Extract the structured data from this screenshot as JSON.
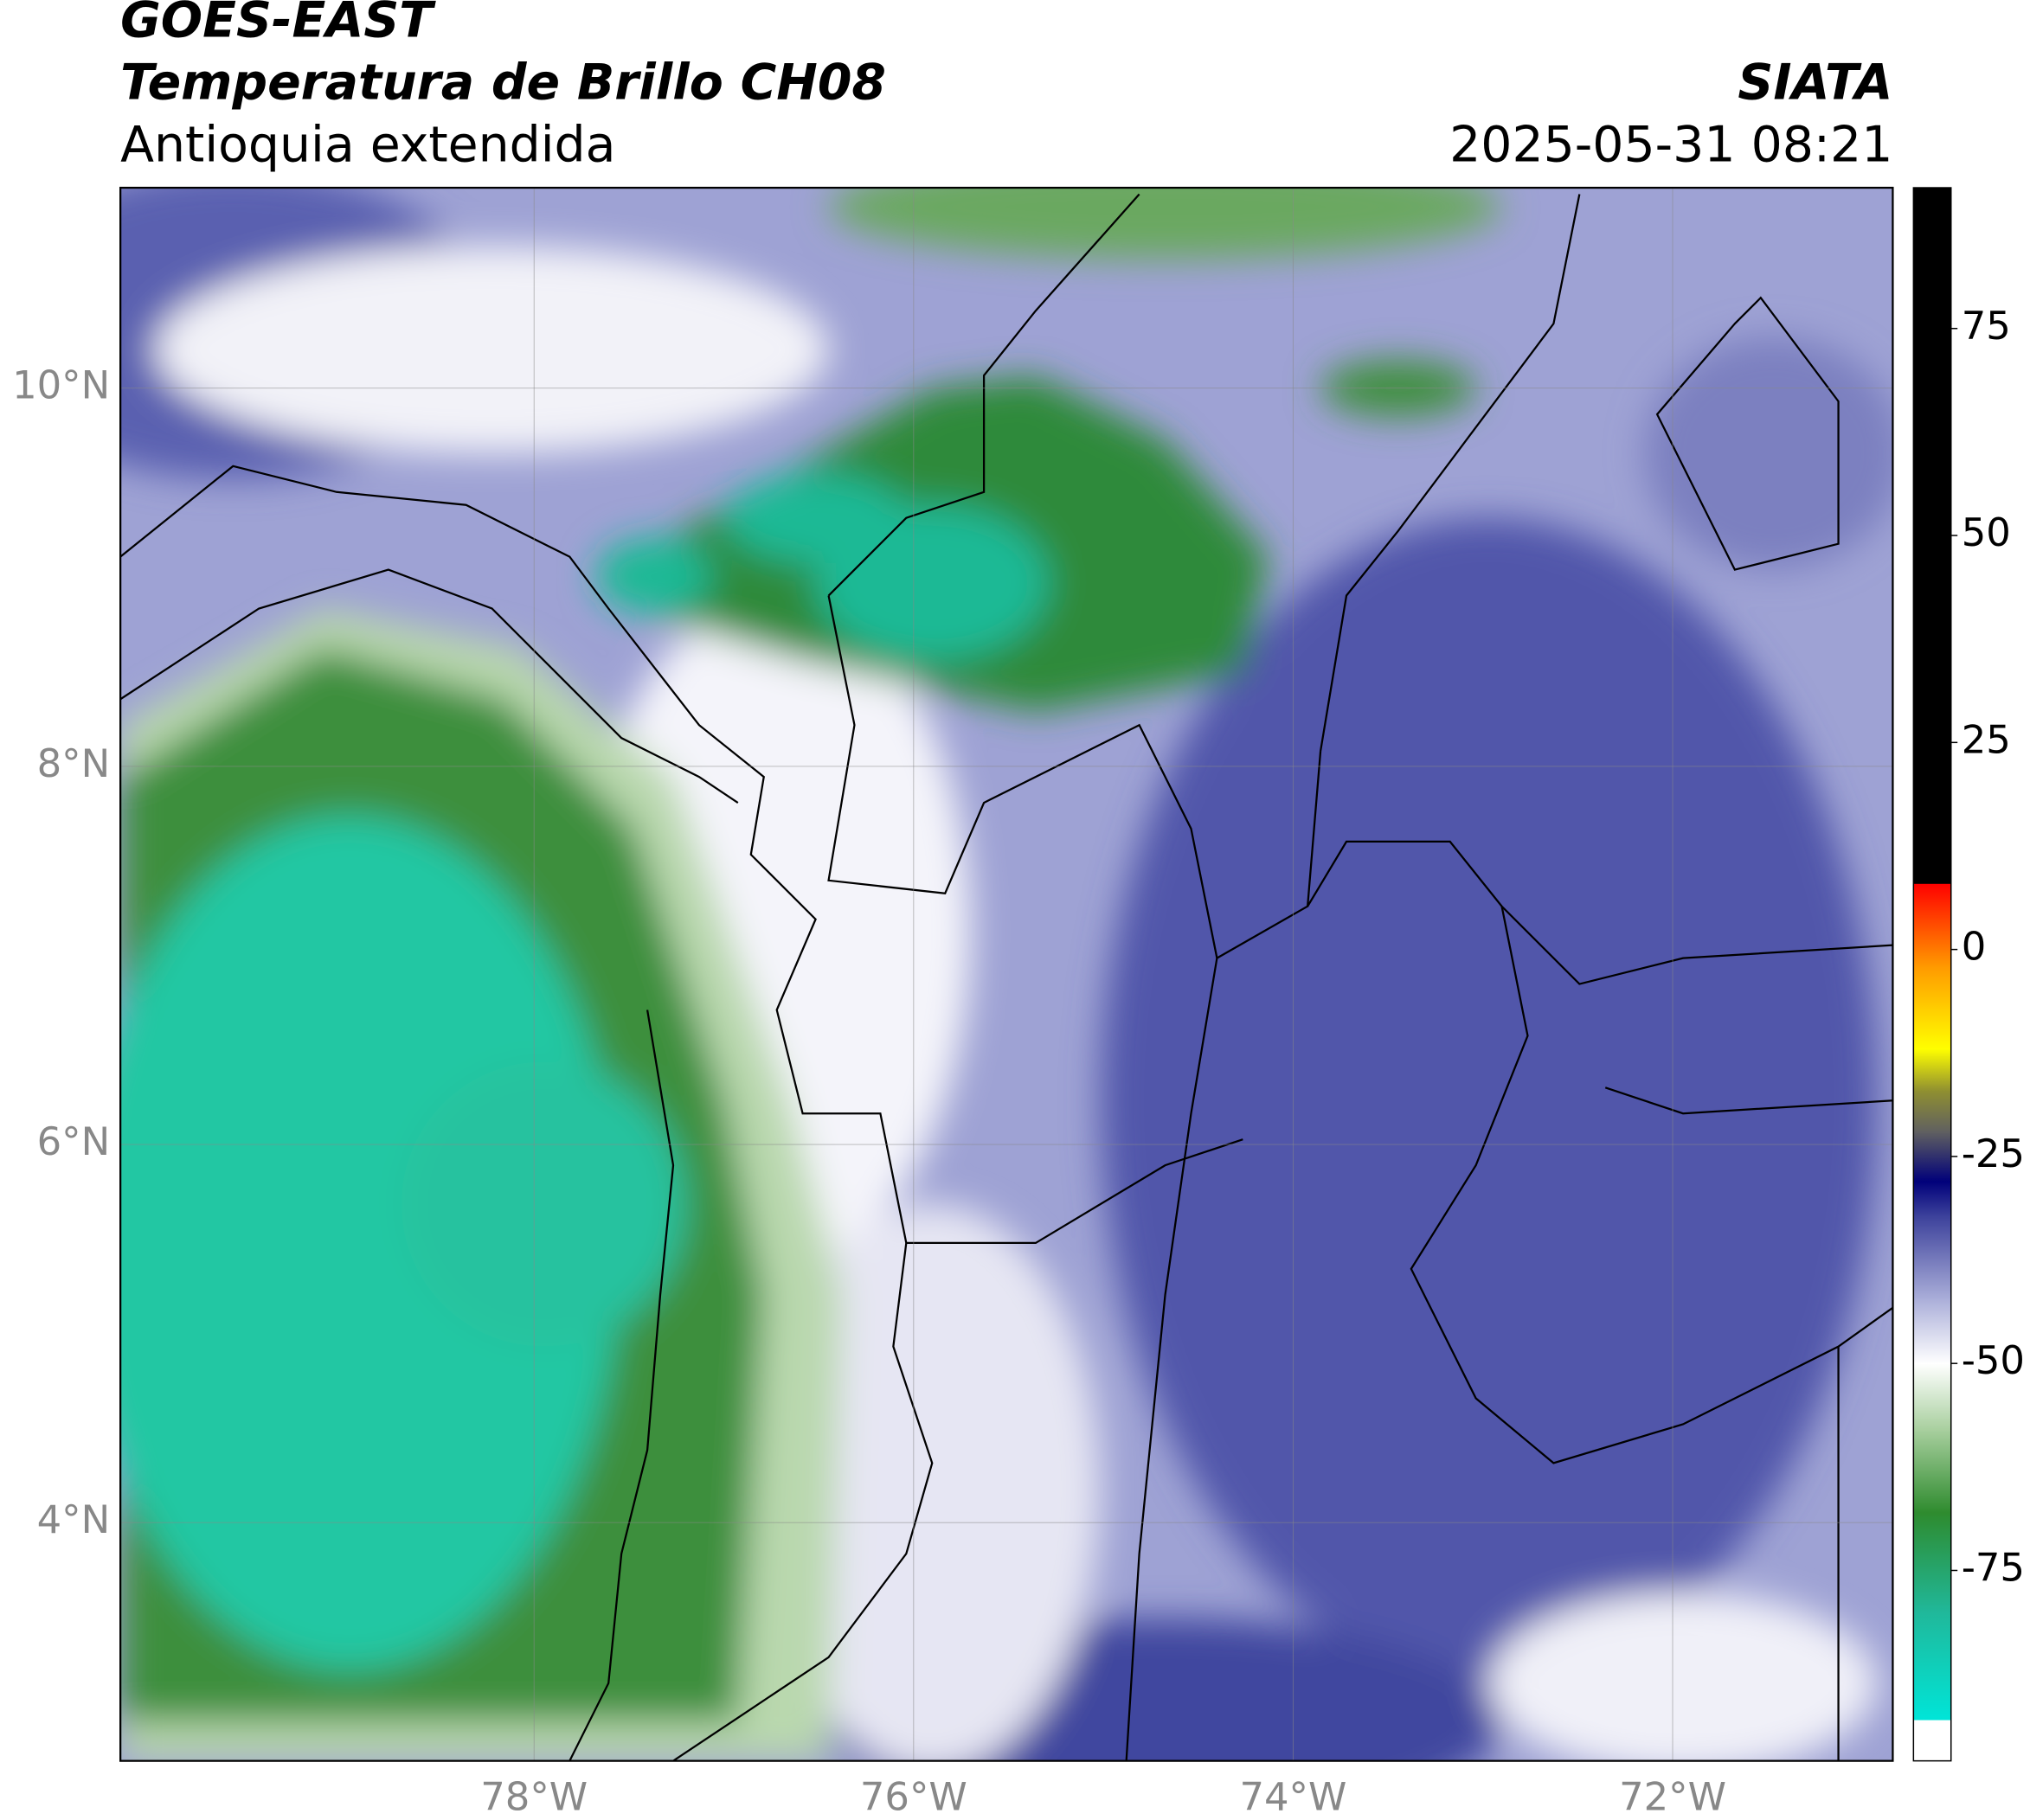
{
  "header": {
    "title": "GOES-EAST",
    "subtitle": "Temperatura de Brillo CH08",
    "region": "Antioquia extendida",
    "source": "SIATA",
    "datetime": "2025-05-31 08:21"
  },
  "chart_data": {
    "type": "map",
    "xlim": [
      -80.18,
      -70.84
    ],
    "ylim": [
      2.74,
      11.06
    ],
    "xticks": [
      {
        "value": -78,
        "label": "78°W"
      },
      {
        "value": -76,
        "label": "76°W"
      },
      {
        "value": -74,
        "label": "74°W"
      },
      {
        "value": -72,
        "label": "72°W"
      }
    ],
    "yticks": [
      {
        "value": 10,
        "label": "10°N"
      },
      {
        "value": 8,
        "label": "8°N"
      },
      {
        "value": 6,
        "label": "6°N"
      },
      {
        "value": 4,
        "label": "4°N"
      }
    ],
    "grid": true,
    "colorbar": {
      "lim": [
        -98,
        92
      ],
      "ticks": [
        75,
        50,
        25,
        0,
        -25,
        -50,
        -75
      ],
      "stops": [
        {
          "value": -98,
          "color": "#ffffff"
        },
        {
          "value": -93,
          "color": "#ffffff"
        },
        {
          "value": -93,
          "color": "#00e5d8"
        },
        {
          "value": -80,
          "color": "#20b89a"
        },
        {
          "value": -68,
          "color": "#2e8b2e"
        },
        {
          "value": -58,
          "color": "#a8cf9e"
        },
        {
          "value": -50,
          "color": "#ffffff"
        },
        {
          "value": -42,
          "color": "#a8acd8"
        },
        {
          "value": -32,
          "color": "#3a3f9a"
        },
        {
          "value": -28,
          "color": "#00007a"
        },
        {
          "value": -22,
          "color": "#606060"
        },
        {
          "value": -17,
          "color": "#909030"
        },
        {
          "value": -12,
          "color": "#ffff00"
        },
        {
          "value": -2,
          "color": "#ff9900"
        },
        {
          "value": 8,
          "color": "#ff0000"
        },
        {
          "value": 8,
          "color": "#000000"
        },
        {
          "value": 92,
          "color": "#000000"
        }
      ]
    }
  }
}
